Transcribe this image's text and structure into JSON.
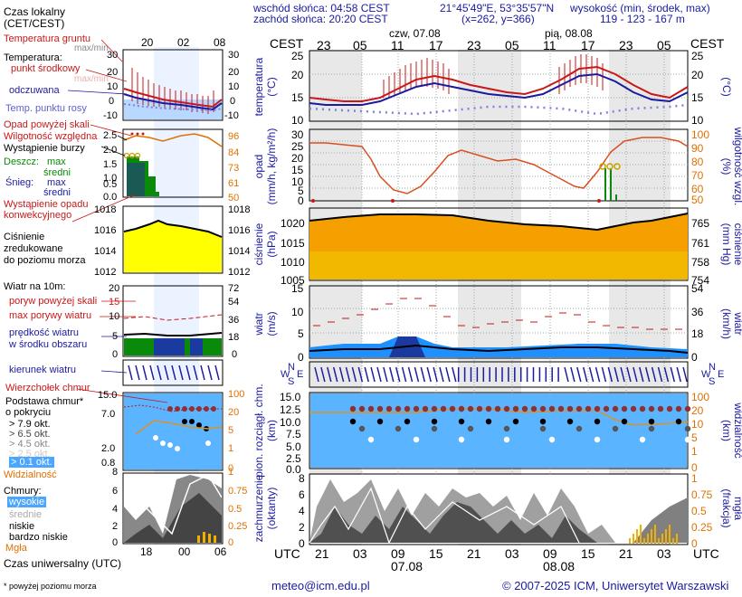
{
  "header": {
    "local_time": "Czas lokalny",
    "local_tz": "(CET/CEST)",
    "sunrise": "wschód słońca: 04:58 CEST",
    "sunset": "zachód słońca: 20:20 CEST",
    "coords": "21°45'49\"E, 53°35'57\"N",
    "grid": "(x=262, y=366)",
    "elev_title": "wysokość (min, środek, max)",
    "elev_values": "119 - 123 - 167 m"
  },
  "left_legend": {
    "ground_temp": "Temperatura gruntu",
    "max_min": "max/min",
    "temperature": "Temperatura:",
    "midpoint": "punkt środkowy",
    "max_min2": "max/min",
    "felt": "odczuwana",
    "dew": "Temp. punktu rosy",
    "rain_above": "Opad powyżej skali",
    "humidity": "Wilgotność względna",
    "storm": "Wystąpienie burzy",
    "rain": "Deszcz:",
    "snow": "Śnieg:",
    "max": "max",
    "mean": "średni",
    "conv1": "Wystąpienie opadu",
    "conv2": "konwekcyjnego",
    "pressure1": "Ciśnienie",
    "pressure2": "zredukowane",
    "pressure3": "do poziomu morza",
    "wind10": "Wiatr na 10m:",
    "gust_above": "poryw powyżej skali",
    "gust_max": "max porywy wiatru",
    "wind_speed1": "prędkość wiatru",
    "wind_speed2": "w środku obszaru",
    "wind_dir": "kierunek wiatru",
    "cloud_top": "Wierzchołek chmur",
    "cloud_base1": "Podstawa chmur*",
    "cloud_base2": "o pokryciu",
    "okt_1": "> 7.9 okt.",
    "okt_2": "> 6.5 okt.",
    "okt_3": "> 4.5 okt.",
    "okt_4": "> 2.5 okt.",
    "okt_5": "> 0.1 okt.",
    "visibility": "Widzialność",
    "clouds": "Chmury:",
    "high": "wysokie",
    "mid": "średnie",
    "low": "niskie",
    "very_low": "bardzo niskie",
    "fog": "Mgła",
    "utc_time": "Czas uniwersalny (UTC)",
    "footnote": "* powyżej poziomu morza"
  },
  "left_ticks": {
    "top_hours": [
      "20",
      "02",
      "08"
    ],
    "bottom_hours": [
      "18",
      "00",
      "06"
    ]
  },
  "main": {
    "cest": "CEST",
    "utc": "UTC",
    "day1": "czw, 07.08",
    "day2": "pią, 08.08",
    "top_hours": [
      "23",
      "05",
      "11",
      "17",
      "23",
      "05",
      "11",
      "17",
      "23",
      "05"
    ],
    "bottom_hours": [
      "21",
      "03",
      "09",
      "15",
      "21",
      "03",
      "09",
      "15",
      "21",
      "03"
    ],
    "bottom_day1": "07.08",
    "bottom_day2": "08.08"
  },
  "axis_titles": {
    "temp_l": "temperatura",
    "temp_l_unit": "(°C)",
    "temp_r": "(°C)",
    "rain_l": "opad",
    "rain_l_unit": "(mm/h, kg/m²/h)",
    "rain_r_unit": "(%)",
    "rain_r": "wilgotność wzgl.",
    "press_l": "ciśnienie",
    "press_l_unit": "(hPa)",
    "press_r_unit": "(mm Hg)",
    "press_r": "ciśnienie",
    "wind_l": "wiatr",
    "wind_l_unit": "(m/s)",
    "wind_r_unit": "(km/h)",
    "wind_r": "wiatr",
    "cloud_l1": "pion. rozciągł. chm.",
    "cloud_l2": "(km)",
    "cloud_r_unit": "(km)",
    "cloud_r": "widzialność",
    "cov_l1": "zachmurzenie",
    "cov_l2": "(oktanty)",
    "cov_r_unit": "(frakcja)",
    "cov_r": "mgła"
  },
  "scales": {
    "temp_left": [
      "25",
      "20",
      "15",
      "10"
    ],
    "temp_right": [
      "25",
      "20",
      "15",
      "10"
    ],
    "rain_left": [
      "30",
      "25",
      "20",
      "15",
      "10",
      "5",
      "0"
    ],
    "hum_right": [
      "100",
      "90",
      "80",
      "70",
      "60",
      "50"
    ],
    "press_left": [
      "1020",
      "1015",
      "1010",
      "1005"
    ],
    "press_right": [
      "765",
      "761",
      "758",
      "754"
    ],
    "wind_left": [
      "15",
      "10",
      "5",
      "0"
    ],
    "wind_right": [
      "54",
      "36",
      "18",
      "0"
    ],
    "cloud_left": [
      "15.0",
      "12.5",
      "10.0",
      "7.5",
      "5.0",
      "2.5",
      "0.0"
    ],
    "vis_right": [
      "100",
      "20",
      "10",
      "5",
      "1",
      "0"
    ],
    "cov_left": [
      "8",
      "6",
      "4",
      "2",
      "0"
    ],
    "cov_right": [
      "1",
      "0.75",
      "0.5",
      "0.25",
      "0"
    ],
    "mini_temp_l": [
      "30",
      "20",
      "10",
      "0",
      "-10"
    ],
    "mini_temp_r": [
      "30",
      "20",
      "10",
      "0",
      "-10"
    ],
    "mini_rain_l": [
      "2.5",
      "2.0",
      "1.5",
      "1.0",
      "0.5",
      "0.0"
    ],
    "mini_hum_r": [
      "96",
      "84",
      "73",
      "61",
      "50"
    ],
    "mini_press_l": [
      "1018",
      "1016",
      "1014",
      "1012"
    ],
    "mini_press_r": [
      "1018",
      "1016",
      "1014",
      "1012"
    ],
    "mini_wind_l": [
      "20",
      "15",
      "10",
      "5",
      "0"
    ],
    "mini_wind_r": [
      "72",
      "54",
      "36",
      "18",
      "0"
    ],
    "mini_cloud_l": [
      "15.0",
      "7.0",
      "2.0",
      "0.8"
    ],
    "mini_vis_r": [
      "100",
      "20",
      "5",
      "1",
      "0"
    ],
    "mini_cov_l": [
      "8",
      "6",
      "4",
      "2",
      "0"
    ],
    "mini_cov_r": [
      "1",
      "0.75",
      "0.5",
      "0.25",
      "0"
    ]
  },
  "compass": {
    "n": "N",
    "w": "W",
    "e": "E",
    "s": "S"
  },
  "footer": {
    "email": "meteo@icm.edu.pl",
    "copyright": "© 2007-2025 ICM, Uniwersytet Warszawski"
  },
  "colors": {
    "red": "#c81818",
    "blue": "#1a1aa0",
    "orange": "#e07000",
    "green": "#0a8a0a",
    "sky": "#5ab4ff"
  }
}
